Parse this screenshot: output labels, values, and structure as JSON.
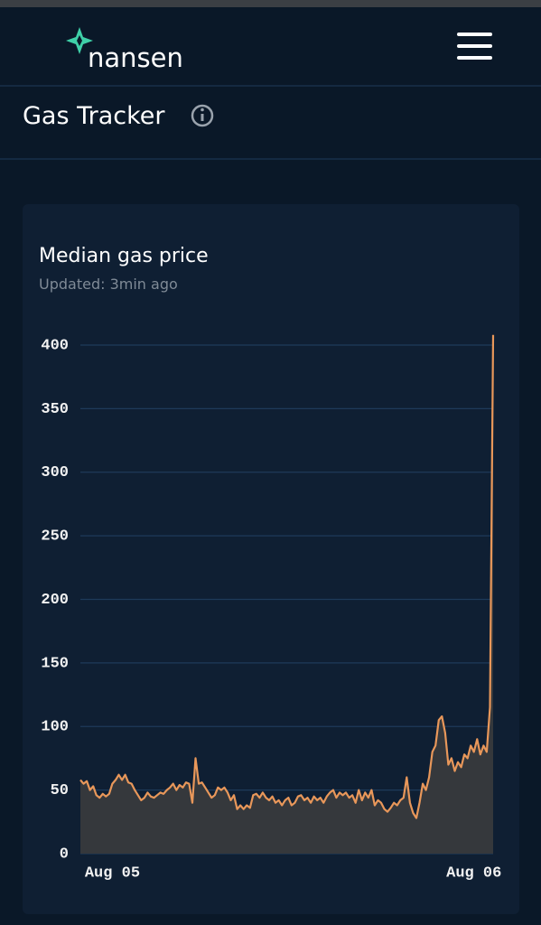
{
  "header": {
    "logo": "nansen",
    "title": "Gas Tracker"
  },
  "chart_data": {
    "type": "area",
    "title": "Median gas price",
    "subtitle": "Updated: 3min ago",
    "categories": [
      null,
      null,
      null,
      null,
      null,
      null,
      null,
      null,
      null,
      null,
      "Aug 05",
      null,
      null,
      null,
      null,
      null,
      null,
      null,
      null,
      null,
      null,
      null,
      null,
      null,
      null,
      null,
      null,
      null,
      null,
      null,
      null,
      null,
      null,
      null,
      null,
      null,
      null,
      null,
      null,
      null,
      null,
      null,
      null,
      null,
      null,
      null,
      null,
      null,
      null,
      null,
      null,
      null,
      null,
      null,
      null,
      null,
      null,
      null,
      null,
      null,
      null,
      null,
      null,
      null,
      null,
      null,
      null,
      null,
      null,
      null,
      null,
      null,
      null,
      null,
      null,
      null,
      null,
      null,
      null,
      null,
      null,
      null,
      null,
      null,
      null,
      null,
      null,
      null,
      null,
      null,
      null,
      null,
      null,
      null,
      null,
      null,
      null,
      null,
      null,
      null,
      null,
      null,
      null,
      null,
      null,
      null,
      null,
      null,
      null,
      null,
      null,
      null,
      null,
      null,
      null,
      null,
      null,
      null,
      null,
      null,
      null,
      null,
      null,
      "Aug 06",
      null,
      null,
      null,
      null,
      null,
      null
    ],
    "values": [
      58,
      55,
      57,
      50,
      53,
      46,
      44,
      47,
      45,
      47,
      55,
      58,
      62,
      58,
      62,
      56,
      55,
      50,
      46,
      42,
      44,
      48,
      45,
      44,
      46,
      48,
      47,
      50,
      52,
      55,
      50,
      54,
      52,
      56,
      55,
      40,
      75,
      55,
      56,
      52,
      48,
      44,
      46,
      52,
      50,
      52,
      48,
      42,
      46,
      35,
      38,
      35,
      38,
      36,
      46,
      47,
      44,
      48,
      44,
      42,
      45,
      40,
      42,
      38,
      42,
      44,
      38,
      40,
      45,
      46,
      42,
      44,
      40,
      45,
      42,
      44,
      40,
      45,
      48,
      50,
      44,
      48,
      46,
      48,
      44,
      46,
      40,
      50,
      42,
      48,
      44,
      50,
      38,
      42,
      40,
      35,
      33,
      36,
      40,
      38,
      42,
      44,
      60,
      40,
      32,
      28,
      40,
      55,
      50,
      60,
      80,
      85,
      105,
      108,
      95,
      70,
      75,
      65,
      72,
      68,
      78,
      75,
      85,
      80,
      90,
      78,
      85,
      80,
      115,
      408
    ],
    "color": "#e8975a",
    "area_color": "#35383c",
    "ylim": [
      0,
      400
    ],
    "yticks": [
      0,
      50,
      100,
      150,
      200,
      250,
      300,
      350,
      400
    ],
    "grid": true
  }
}
